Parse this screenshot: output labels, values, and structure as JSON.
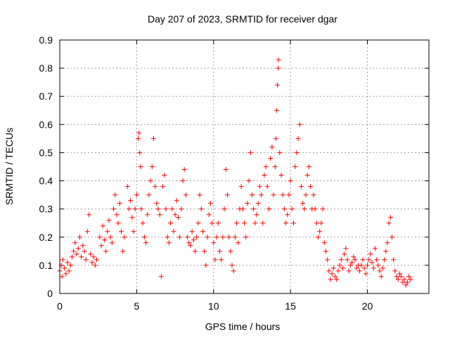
{
  "chart_data": {
    "type": "scatter",
    "title": "Day 207 of 2023, SRMTID for receiver dgar",
    "xlabel": "GPS time / hours",
    "ylabel": "SRMTID / TECUs",
    "xlim": [
      0,
      24
    ],
    "ylim": [
      0,
      0.9
    ],
    "xticks": [
      0,
      5,
      10,
      15,
      20
    ],
    "yticks": [
      0,
      0.1,
      0.2,
      0.3,
      0.4,
      0.5,
      0.6,
      0.7,
      0.8,
      0.9
    ],
    "grid": true,
    "marker": "+",
    "series": [
      {
        "name": "SRMTID",
        "color": "#ff0000",
        "points": [
          [
            0.0,
            0.08
          ],
          [
            0.1,
            0.1
          ],
          [
            0.15,
            0.06
          ],
          [
            0.2,
            0.12
          ],
          [
            0.3,
            0.09
          ],
          [
            0.4,
            0.07
          ],
          [
            0.5,
            0.11
          ],
          [
            0.6,
            0.08
          ],
          [
            0.7,
            0.1
          ],
          [
            0.8,
            0.13
          ],
          [
            0.9,
            0.15
          ],
          [
            1.0,
            0.18
          ],
          [
            1.1,
            0.14
          ],
          [
            1.2,
            0.16
          ],
          [
            1.3,
            0.2
          ],
          [
            1.4,
            0.13
          ],
          [
            1.5,
            0.17
          ],
          [
            1.6,
            0.15
          ],
          [
            1.7,
            0.12
          ],
          [
            1.8,
            0.22
          ],
          [
            1.9,
            0.28
          ],
          [
            2.0,
            0.14
          ],
          [
            2.1,
            0.11
          ],
          [
            2.2,
            0.13
          ],
          [
            2.3,
            0.1
          ],
          [
            2.4,
            0.12
          ],
          [
            2.6,
            0.2
          ],
          [
            2.7,
            0.17
          ],
          [
            2.8,
            0.24
          ],
          [
            2.9,
            0.19
          ],
          [
            3.0,
            0.15
          ],
          [
            3.1,
            0.22
          ],
          [
            3.2,
            0.26
          ],
          [
            3.3,
            0.2
          ],
          [
            3.4,
            0.18
          ],
          [
            3.5,
            0.3
          ],
          [
            3.6,
            0.35
          ],
          [
            3.7,
            0.28
          ],
          [
            3.8,
            0.25
          ],
          [
            3.9,
            0.32
          ],
          [
            4.0,
            0.22
          ],
          [
            4.1,
            0.15
          ],
          [
            4.2,
            0.2
          ],
          [
            4.4,
            0.38
          ],
          [
            4.5,
            0.3
          ],
          [
            4.6,
            0.33
          ],
          [
            4.7,
            0.27
          ],
          [
            4.8,
            0.22
          ],
          [
            4.9,
            0.3
          ],
          [
            5.0,
            0.35
          ],
          [
            5.1,
            0.55
          ],
          [
            5.15,
            0.57
          ],
          [
            5.2,
            0.5
          ],
          [
            5.25,
            0.45
          ],
          [
            5.3,
            0.3
          ],
          [
            5.4,
            0.25
          ],
          [
            5.5,
            0.2
          ],
          [
            5.6,
            0.18
          ],
          [
            5.7,
            0.28
          ],
          [
            5.8,
            0.35
          ],
          [
            5.9,
            0.4
          ],
          [
            6.0,
            0.45
          ],
          [
            6.1,
            0.55
          ],
          [
            6.2,
            0.38
          ],
          [
            6.3,
            0.32
          ],
          [
            6.4,
            0.3
          ],
          [
            6.5,
            0.28
          ],
          [
            6.6,
            0.06
          ],
          [
            6.7,
            0.38
          ],
          [
            6.8,
            0.42
          ],
          [
            6.9,
            0.3
          ],
          [
            7.0,
            0.2
          ],
          [
            7.1,
            0.18
          ],
          [
            7.2,
            0.25
          ],
          [
            7.3,
            0.3
          ],
          [
            7.4,
            0.22
          ],
          [
            7.5,
            0.28
          ],
          [
            7.6,
            0.33
          ],
          [
            7.7,
            0.27
          ],
          [
            7.8,
            0.2
          ],
          [
            7.9,
            0.3
          ],
          [
            8.0,
            0.4
          ],
          [
            8.1,
            0.44
          ],
          [
            8.2,
            0.35
          ],
          [
            8.3,
            0.2
          ],
          [
            8.4,
            0.18
          ],
          [
            8.5,
            0.17
          ],
          [
            8.6,
            0.22
          ],
          [
            8.7,
            0.19
          ],
          [
            8.8,
            0.15
          ],
          [
            8.9,
            0.2
          ],
          [
            9.0,
            0.25
          ],
          [
            9.1,
            0.35
          ],
          [
            9.2,
            0.3
          ],
          [
            9.3,
            0.22
          ],
          [
            9.4,
            0.15
          ],
          [
            9.5,
            0.1
          ],
          [
            9.6,
            0.2
          ],
          [
            9.7,
            0.28
          ],
          [
            9.8,
            0.32
          ],
          [
            9.9,
            0.25
          ],
          [
            10.0,
            0.18
          ],
          [
            10.1,
            0.12
          ],
          [
            10.2,
            0.2
          ],
          [
            10.3,
            0.25
          ],
          [
            10.4,
            0.15
          ],
          [
            10.5,
            0.12
          ],
          [
            10.6,
            0.2
          ],
          [
            10.7,
            0.3
          ],
          [
            10.8,
            0.44
          ],
          [
            10.9,
            0.35
          ],
          [
            11.0,
            0.2
          ],
          [
            11.1,
            0.15
          ],
          [
            11.2,
            0.1
          ],
          [
            11.3,
            0.08
          ],
          [
            11.4,
            0.2
          ],
          [
            11.5,
            0.25
          ],
          [
            11.6,
            0.18
          ],
          [
            11.7,
            0.3
          ],
          [
            11.8,
            0.38
          ],
          [
            11.9,
            0.3
          ],
          [
            12.0,
            0.25
          ],
          [
            12.1,
            0.2
          ],
          [
            12.2,
            0.32
          ],
          [
            12.3,
            0.4
          ],
          [
            12.4,
            0.5
          ],
          [
            12.5,
            0.35
          ],
          [
            12.6,
            0.3
          ],
          [
            12.7,
            0.25
          ],
          [
            12.8,
            0.28
          ],
          [
            12.9,
            0.32
          ],
          [
            13.0,
            0.38
          ],
          [
            13.1,
            0.35
          ],
          [
            13.2,
            0.25
          ],
          [
            13.3,
            0.42
          ],
          [
            13.4,
            0.45
          ],
          [
            13.5,
            0.38
          ],
          [
            13.6,
            0.3
          ],
          [
            13.7,
            0.48
          ],
          [
            13.8,
            0.52
          ],
          [
            13.9,
            0.35
          ],
          [
            14.0,
            0.45
          ],
          [
            14.05,
            0.55
          ],
          [
            14.1,
            0.65
          ],
          [
            14.15,
            0.74
          ],
          [
            14.2,
            0.8
          ],
          [
            14.22,
            0.83
          ],
          [
            14.3,
            0.5
          ],
          [
            14.4,
            0.42
          ],
          [
            14.5,
            0.35
          ],
          [
            14.6,
            0.3
          ],
          [
            14.7,
            0.25
          ],
          [
            14.8,
            0.28
          ],
          [
            14.9,
            0.35
          ],
          [
            15.0,
            0.4
          ],
          [
            15.1,
            0.3
          ],
          [
            15.2,
            0.25
          ],
          [
            15.3,
            0.45
          ],
          [
            15.4,
            0.5
          ],
          [
            15.5,
            0.55
          ],
          [
            15.6,
            0.6
          ],
          [
            15.7,
            0.38
          ],
          [
            15.8,
            0.32
          ],
          [
            15.9,
            0.3
          ],
          [
            16.0,
            0.35
          ],
          [
            16.1,
            0.42
          ],
          [
            16.2,
            0.45
          ],
          [
            16.3,
            0.38
          ],
          [
            16.4,
            0.3
          ],
          [
            16.5,
            0.35
          ],
          [
            16.6,
            0.3
          ],
          [
            16.7,
            0.25
          ],
          [
            16.8,
            0.2
          ],
          [
            16.9,
            0.22
          ],
          [
            17.0,
            0.25
          ],
          [
            17.1,
            0.3
          ],
          [
            17.2,
            0.18
          ],
          [
            17.3,
            0.15
          ],
          [
            17.4,
            0.12
          ],
          [
            17.5,
            0.08
          ],
          [
            17.6,
            0.05
          ],
          [
            17.7,
            0.07
          ],
          [
            17.8,
            0.09
          ],
          [
            17.9,
            0.06
          ],
          [
            18.0,
            0.05
          ],
          [
            18.1,
            0.08
          ],
          [
            18.2,
            0.1
          ],
          [
            18.3,
            0.12
          ],
          [
            18.4,
            0.09
          ],
          [
            18.5,
            0.14
          ],
          [
            18.6,
            0.16
          ],
          [
            18.7,
            0.12
          ],
          [
            18.8,
            0.08
          ],
          [
            18.9,
            0.1
          ],
          [
            19.0,
            0.11
          ],
          [
            19.1,
            0.13
          ],
          [
            19.2,
            0.12
          ],
          [
            19.3,
            0.09
          ],
          [
            19.4,
            0.1
          ],
          [
            19.5,
            0.08
          ],
          [
            19.6,
            0.1
          ],
          [
            19.7,
            0.12
          ],
          [
            19.8,
            0.09
          ],
          [
            19.9,
            0.07
          ],
          [
            20.0,
            0.1
          ],
          [
            20.1,
            0.12
          ],
          [
            20.2,
            0.14
          ],
          [
            20.3,
            0.11
          ],
          [
            20.4,
            0.09
          ],
          [
            20.5,
            0.16
          ],
          [
            20.6,
            0.12
          ],
          [
            20.7,
            0.1
          ],
          [
            20.8,
            0.08
          ],
          [
            20.9,
            0.06
          ],
          [
            21.0,
            0.09
          ],
          [
            21.1,
            0.12
          ],
          [
            21.2,
            0.15
          ],
          [
            21.3,
            0.18
          ],
          [
            21.4,
            0.25
          ],
          [
            21.5,
            0.27
          ],
          [
            21.6,
            0.2
          ],
          [
            21.7,
            0.12
          ],
          [
            21.8,
            0.08
          ],
          [
            21.9,
            0.06
          ],
          [
            22.0,
            0.05
          ],
          [
            22.1,
            0.07
          ],
          [
            22.2,
            0.06
          ],
          [
            22.3,
            0.04
          ],
          [
            22.4,
            0.05
          ],
          [
            22.5,
            0.03
          ],
          [
            22.6,
            0.04
          ],
          [
            22.7,
            0.06
          ],
          [
            22.8,
            0.05
          ]
        ]
      }
    ]
  }
}
